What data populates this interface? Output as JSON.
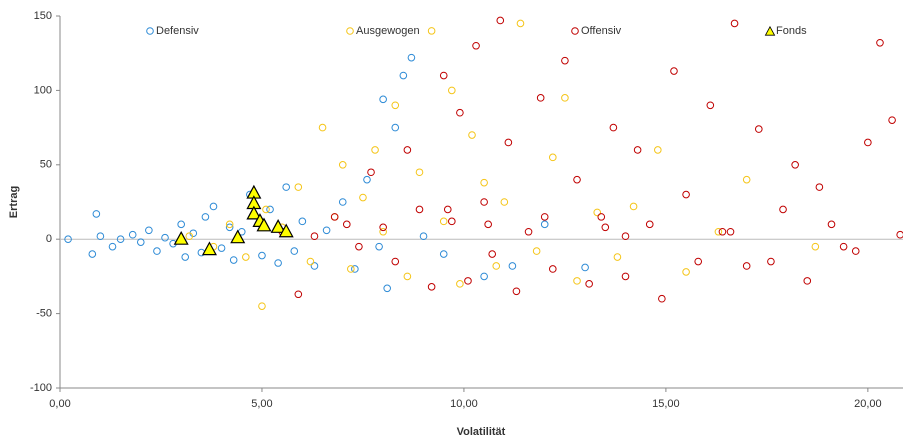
{
  "chart_data": {
    "type": "scatter",
    "x_label": "Volatilität",
    "y_label": "Ertrag",
    "xlim": [
      0,
      20.87
    ],
    "ylim": [
      -100,
      150
    ],
    "xticks": [
      {
        "value": 0,
        "label": "0,00"
      },
      {
        "value": 5,
        "label": "5,00"
      },
      {
        "value": 10,
        "label": "10,00"
      },
      {
        "value": 15,
        "label": "15,00"
      },
      {
        "value": 20,
        "label": "20,00"
      }
    ],
    "yticks": [
      -100,
      -50,
      0,
      50,
      100,
      150
    ],
    "grid": false,
    "legend": "top",
    "series": [
      {
        "name": "Defensiv",
        "color": "#2e8bd6",
        "marker": "circle",
        "x": [
          0.2,
          0.8,
          0.9,
          1.0,
          1.3,
          1.5,
          1.8,
          2.0,
          2.2,
          2.4,
          2.6,
          2.8,
          3.0,
          3.1,
          3.3,
          3.5,
          3.6,
          3.8,
          4.0,
          4.2,
          4.3,
          4.5,
          4.7,
          5.0,
          5.2,
          5.4,
          5.6,
          5.8,
          6.0,
          6.3,
          6.6,
          7.0,
          7.3,
          7.6,
          7.9,
          8.0,
          8.1,
          8.3,
          8.5,
          8.7,
          9.0,
          9.5,
          10.5,
          11.2,
          12.0,
          13.0
        ],
        "y": [
          0,
          -10,
          17,
          2,
          -5,
          0,
          3,
          -2,
          6,
          -8,
          1,
          -3,
          10,
          -12,
          4,
          -9,
          15,
          22,
          -6,
          8,
          -14,
          5,
          30,
          -11,
          20,
          -16,
          35,
          -8,
          12,
          -18,
          6,
          25,
          -20,
          40,
          -5,
          94,
          -33,
          75,
          110,
          122,
          2,
          -10,
          -25,
          -18,
          10,
          -19
        ]
      },
      {
        "name": "Ausgewogen",
        "color": "#f5c518",
        "marker": "circle",
        "x": [
          3.2,
          3.8,
          4.2,
          4.6,
          5.0,
          5.1,
          5.5,
          5.9,
          6.2,
          6.5,
          6.8,
          7.0,
          7.2,
          7.5,
          7.8,
          8.0,
          8.3,
          8.6,
          8.9,
          9.2,
          9.5,
          9.7,
          9.9,
          10.2,
          10.5,
          10.8,
          11.0,
          11.4,
          11.8,
          12.2,
          12.5,
          12.8,
          13.3,
          13.8,
          14.2,
          14.8,
          15.5,
          16.3,
          17.0,
          18.7
        ],
        "y": [
          2,
          -5,
          10,
          -12,
          -45,
          20,
          8,
          35,
          -15,
          75,
          15,
          50,
          -20,
          28,
          60,
          5,
          90,
          -25,
          45,
          140,
          12,
          100,
          -30,
          70,
          38,
          -18,
          25,
          145,
          -8,
          55,
          95,
          -28,
          18,
          -12,
          22,
          60,
          -22,
          5,
          40,
          -5
        ]
      },
      {
        "name": "Offensiv",
        "color": "#c00000",
        "marker": "circle",
        "x": [
          5.5,
          5.9,
          6.3,
          6.8,
          7.1,
          7.4,
          7.7,
          8.0,
          8.3,
          8.6,
          8.9,
          9.2,
          9.5,
          9.7,
          9.9,
          10.1,
          10.3,
          10.5,
          10.7,
          10.9,
          11.1,
          11.3,
          11.6,
          11.9,
          12.2,
          12.5,
          12.8,
          13.1,
          13.4,
          13.7,
          14.0,
          14.3,
          14.6,
          14.9,
          15.2,
          15.5,
          15.8,
          16.1,
          16.4,
          16.7,
          17.0,
          17.3,
          17.6,
          17.9,
          18.2,
          18.5,
          18.8,
          19.1,
          19.4,
          19.7,
          20.0,
          20.3,
          20.6,
          20.8,
          9.6,
          10.6,
          12.0,
          13.5,
          16.6,
          14.0
        ],
        "y": [
          5,
          -37,
          2,
          15,
          10,
          -5,
          45,
          8,
          -15,
          60,
          20,
          -32,
          110,
          12,
          85,
          -28,
          130,
          25,
          -10,
          147,
          65,
          -35,
          5,
          95,
          -20,
          120,
          40,
          -30,
          15,
          75,
          -25,
          60,
          10,
          -40,
          113,
          30,
          -15,
          90,
          5,
          145,
          -18,
          74,
          -15,
          20,
          50,
          -28,
          35,
          10,
          -5,
          -8,
          65,
          132,
          80,
          3,
          20,
          10,
          15,
          8,
          5,
          2
        ]
      },
      {
        "name": "Fonds",
        "color": "#ffff00",
        "marker": "triangle",
        "x": [
          3.0,
          3.7,
          4.4,
          4.8,
          4.8,
          4.8,
          4.95,
          5.05,
          5.4,
          5.6
        ],
        "y": [
          0,
          -7,
          1,
          31,
          24,
          17,
          12,
          9,
          8,
          5
        ]
      }
    ]
  }
}
